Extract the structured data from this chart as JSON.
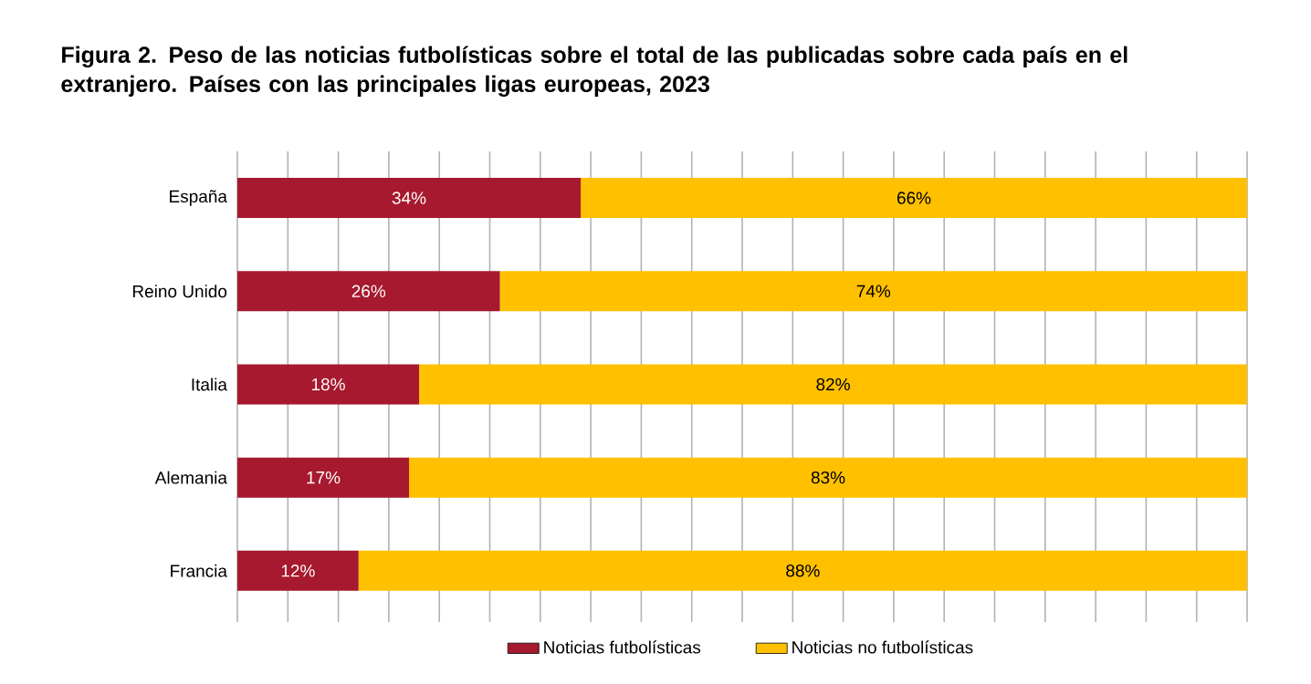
{
  "chart_data": {
    "type": "bar",
    "orientation": "horizontal",
    "stacked": true,
    "title": "Figura 2. Peso de las noticias futbolísticas sobre el total de las publicadas sobre cada país en el extranjero. Países con las principales ligas europeas, 2023",
    "categories": [
      "España",
      "Reino Unido",
      "Italia",
      "Alemania",
      "Francia"
    ],
    "series": [
      {
        "name": "Noticias futbolísticas",
        "color": "#a6192e",
        "values": [
          34,
          26,
          18,
          17,
          12
        ],
        "value_labels": [
          "34%",
          "26%",
          "18%",
          "17%",
          "12%"
        ]
      },
      {
        "name": "Noticias no futbolísticas",
        "color": "#ffc000",
        "values": [
          66,
          74,
          82,
          83,
          88
        ],
        "value_labels": [
          "66%",
          "74%",
          "82%",
          "83%",
          "88%"
        ]
      }
    ],
    "grid": "x",
    "tick_labels": "y",
    "legend": "bottom"
  }
}
